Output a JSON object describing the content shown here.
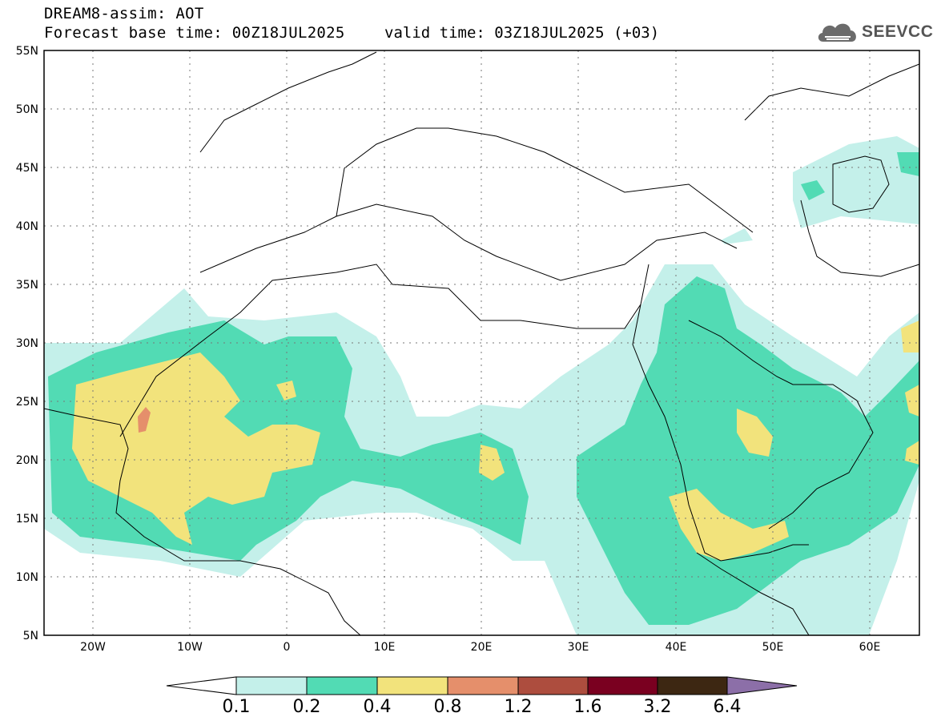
{
  "header": {
    "title": "DREAM8-assim: AOT",
    "base_time": "Forecast base time: 00Z18JUL2025",
    "valid_time": "valid time: 03Z18JUL2025 (+03)"
  },
  "logo": {
    "text": "SEEVCCC",
    "icon": "cloud-icon"
  },
  "map": {
    "lat_labels": [
      "55N",
      "50N",
      "45N",
      "40N",
      "35N",
      "30N",
      "25N",
      "20N",
      "15N",
      "10N",
      "5N"
    ],
    "lon_labels": [
      "20W",
      "10W",
      "0",
      "10E",
      "20E",
      "30E",
      "40E",
      "50E",
      "60E"
    ],
    "lon_range": [
      -25,
      65
    ],
    "lat_range": [
      5,
      55
    ],
    "gridlines": "dotted"
  },
  "colorbar": {
    "labels": [
      "0.1",
      "0.2",
      "0.4",
      "0.8",
      "1.2",
      "1.6",
      "3.2",
      "6.4"
    ],
    "colors": [
      "#ffffff",
      "#c4f0ea",
      "#52dbb4",
      "#f2e37c",
      "#e58f6b",
      "#ad4d3e",
      "#7a0020",
      "#3d2712",
      "#8c6fa8"
    ]
  }
}
